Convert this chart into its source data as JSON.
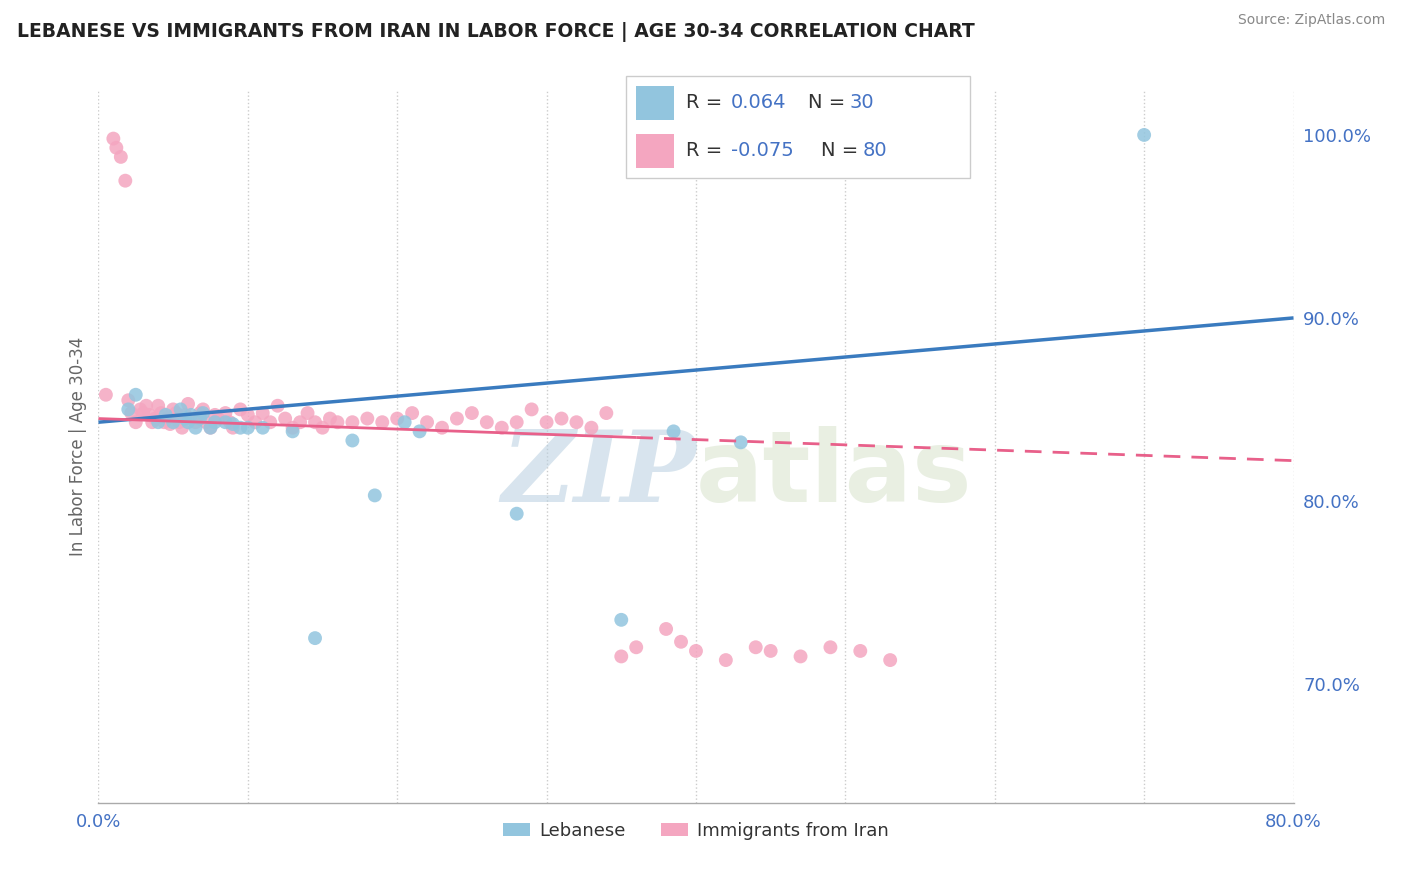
{
  "title": "LEBANESE VS IMMIGRANTS FROM IRAN IN LABOR FORCE | AGE 30-34 CORRELATION CHART",
  "source": "Source: ZipAtlas.com",
  "ylabel": "In Labor Force | Age 30-34",
  "xlim": [
    0.0,
    0.8
  ],
  "ylim": [
    0.635,
    1.025
  ],
  "xticks": [
    0.0,
    0.1,
    0.2,
    0.3,
    0.4,
    0.5,
    0.6,
    0.7,
    0.8
  ],
  "xticklabels": [
    "0.0%",
    "",
    "",
    "",
    "",
    "",
    "",
    "",
    "80.0%"
  ],
  "yticks_right": [
    0.7,
    0.8,
    0.9,
    1.0
  ],
  "ytick_right_labels": [
    "70.0%",
    "80.0%",
    "90.0%",
    "100.0%"
  ],
  "legend_R1": "0.064",
  "legend_N1": "30",
  "legend_R2": "-0.075",
  "legend_N2": "80",
  "blue_color": "#92c5de",
  "pink_color": "#f4a6c0",
  "trend_blue": "#3a7bbf",
  "trend_pink": "#e8608a",
  "blue_scatter_x": [
    0.02,
    0.025,
    0.04,
    0.045,
    0.05,
    0.055,
    0.058,
    0.06,
    0.062,
    0.065,
    0.068,
    0.07,
    0.075,
    0.078,
    0.085,
    0.09,
    0.095,
    0.1,
    0.11,
    0.13,
    0.145,
    0.17,
    0.185,
    0.205,
    0.215,
    0.28,
    0.35,
    0.385,
    0.43,
    0.7
  ],
  "blue_scatter_y": [
    0.85,
    0.858,
    0.843,
    0.847,
    0.843,
    0.85,
    0.845,
    0.843,
    0.847,
    0.84,
    0.845,
    0.848,
    0.84,
    0.843,
    0.843,
    0.842,
    0.84,
    0.84,
    0.84,
    0.838,
    0.725,
    0.833,
    0.803,
    0.843,
    0.838,
    0.793,
    0.735,
    0.838,
    0.832,
    1.0
  ],
  "pink_scatter_x": [
    0.005,
    0.01,
    0.012,
    0.015,
    0.018,
    0.02,
    0.022,
    0.025,
    0.028,
    0.03,
    0.032,
    0.034,
    0.036,
    0.038,
    0.04,
    0.042,
    0.044,
    0.046,
    0.048,
    0.05,
    0.052,
    0.054,
    0.056,
    0.058,
    0.06,
    0.062,
    0.065,
    0.068,
    0.07,
    0.072,
    0.075,
    0.078,
    0.08,
    0.085,
    0.088,
    0.09,
    0.095,
    0.1,
    0.105,
    0.11,
    0.115,
    0.12,
    0.125,
    0.13,
    0.135,
    0.14,
    0.145,
    0.15,
    0.155,
    0.16,
    0.17,
    0.18,
    0.19,
    0.2,
    0.21,
    0.22,
    0.23,
    0.24,
    0.25,
    0.26,
    0.27,
    0.28,
    0.29,
    0.3,
    0.31,
    0.32,
    0.33,
    0.34,
    0.35,
    0.36,
    0.38,
    0.39,
    0.4,
    0.42,
    0.44,
    0.45,
    0.47,
    0.49,
    0.51,
    0.53
  ],
  "pink_scatter_y": [
    0.858,
    0.998,
    0.993,
    0.988,
    0.975,
    0.855,
    0.848,
    0.843,
    0.85,
    0.848,
    0.852,
    0.847,
    0.843,
    0.845,
    0.852,
    0.848,
    0.843,
    0.845,
    0.842,
    0.85,
    0.848,
    0.843,
    0.84,
    0.847,
    0.853,
    0.845,
    0.843,
    0.848,
    0.85,
    0.843,
    0.84,
    0.847,
    0.845,
    0.848,
    0.843,
    0.84,
    0.85,
    0.847,
    0.843,
    0.848,
    0.843,
    0.852,
    0.845,
    0.84,
    0.843,
    0.848,
    0.843,
    0.84,
    0.845,
    0.843,
    0.843,
    0.845,
    0.843,
    0.845,
    0.848,
    0.843,
    0.84,
    0.845,
    0.848,
    0.843,
    0.84,
    0.843,
    0.85,
    0.843,
    0.845,
    0.843,
    0.84,
    0.848,
    0.715,
    0.72,
    0.73,
    0.723,
    0.718,
    0.713,
    0.72,
    0.718,
    0.715,
    0.72,
    0.718,
    0.713
  ]
}
